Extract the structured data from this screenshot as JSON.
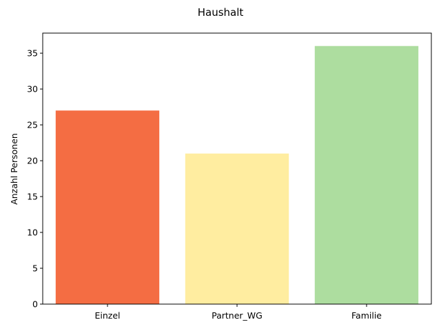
{
  "chart_data": {
    "type": "bar",
    "title": "Haushalt",
    "xlabel": "",
    "ylabel": "Anzahl Personen",
    "categories": [
      "Einzel",
      "Partner_WG",
      "Familie"
    ],
    "values": [
      27,
      21,
      36
    ],
    "colors": [
      "#f46d43",
      "#ffeda0",
      "#addd9f"
    ],
    "ylim": [
      0,
      37.8
    ],
    "yticks": [
      0,
      5,
      10,
      15,
      20,
      25,
      30,
      35
    ],
    "grid": false,
    "legend": "none"
  }
}
